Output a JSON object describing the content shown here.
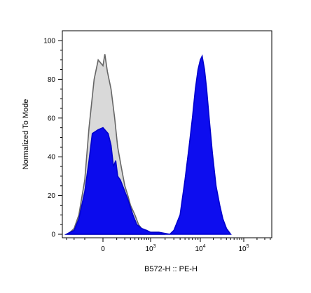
{
  "chart_data": {
    "type": "area",
    "xlabel": "B572-H :: PE-H",
    "ylabel": "Normalized To Mode",
    "x_scale": "biexponential",
    "ylim": [
      0,
      100
    ],
    "y_ticks": [
      0,
      20,
      40,
      60,
      80,
      100
    ],
    "x_tick_labels": [
      {
        "value": 0,
        "base": "0",
        "exp": ""
      },
      {
        "value": 1000,
        "base": "10",
        "exp": "3"
      },
      {
        "value": 10000,
        "base": "10",
        "exp": "4"
      },
      {
        "value": 100000,
        "base": "10",
        "exp": "5"
      }
    ],
    "grid": false,
    "series": [
      {
        "fill": "#d9d9d9",
        "stroke": "#666666",
        "points": [
          [
            -300,
            0
          ],
          [
            -250,
            1
          ],
          [
            -200,
            3
          ],
          [
            -150,
            10
          ],
          [
            -100,
            28
          ],
          [
            -70,
            55
          ],
          [
            -40,
            80
          ],
          [
            -20,
            90
          ],
          [
            0,
            87
          ],
          [
            10,
            93
          ],
          [
            25,
            84
          ],
          [
            50,
            75
          ],
          [
            80,
            60
          ],
          [
            110,
            45
          ],
          [
            150,
            35
          ],
          [
            200,
            25
          ],
          [
            250,
            20
          ],
          [
            300,
            15
          ],
          [
            400,
            10
          ],
          [
            500,
            5
          ],
          [
            600,
            3
          ],
          [
            800,
            2
          ],
          [
            1000,
            1
          ],
          [
            1500,
            1
          ],
          [
            2000,
            0
          ]
        ]
      },
      {
        "fill": "#0000ee",
        "stroke": "#0000cc",
        "points": [
          [
            -300,
            0
          ],
          [
            -250,
            1
          ],
          [
            -200,
            2
          ],
          [
            -150,
            8
          ],
          [
            -100,
            22
          ],
          [
            -70,
            38
          ],
          [
            -50,
            52
          ],
          [
            -20,
            54
          ],
          [
            0,
            55
          ],
          [
            30,
            52
          ],
          [
            50,
            46
          ],
          [
            70,
            35
          ],
          [
            90,
            38
          ],
          [
            110,
            30
          ],
          [
            140,
            28
          ],
          [
            180,
            24
          ],
          [
            250,
            18
          ],
          [
            350,
            10
          ],
          [
            450,
            5
          ],
          [
            600,
            3
          ],
          [
            800,
            2
          ],
          [
            1000,
            1
          ],
          [
            1500,
            1
          ],
          [
            2500,
            0
          ],
          [
            3000,
            2
          ],
          [
            4000,
            10
          ],
          [
            5000,
            28
          ],
          [
            6000,
            45
          ],
          [
            7000,
            60
          ],
          [
            8000,
            75
          ],
          [
            9000,
            85
          ],
          [
            10000,
            90
          ],
          [
            11000,
            92
          ],
          [
            12500,
            85
          ],
          [
            14000,
            75
          ],
          [
            16000,
            60
          ],
          [
            19000,
            42
          ],
          [
            23000,
            25
          ],
          [
            28000,
            15
          ],
          [
            33000,
            8
          ],
          [
            40000,
            3
          ],
          [
            50000,
            0
          ]
        ]
      }
    ]
  }
}
